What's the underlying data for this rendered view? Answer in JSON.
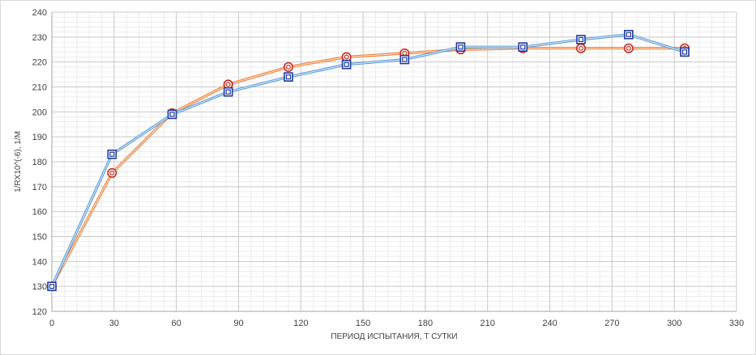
{
  "chart_data": {
    "type": "line",
    "title": "",
    "xlabel": "ПЕРИОД ИСПЫТАНИЯ, Т СУТКИ",
    "ylabel": "1/RX10^(-6), 1/M",
    "xlim": [
      0,
      330
    ],
    "ylim": [
      120,
      240
    ],
    "x_ticks": [
      0,
      30,
      60,
      90,
      120,
      150,
      180,
      210,
      240,
      270,
      300,
      330
    ],
    "y_ticks": [
      120,
      130,
      140,
      150,
      160,
      170,
      180,
      190,
      200,
      210,
      220,
      230,
      240
    ],
    "grid": "major and minor",
    "legend": "none",
    "series": [
      {
        "marker": "square",
        "color": "#5b9bd5",
        "marker_color": "#1f3b9c",
        "x": [
          0,
          29,
          58,
          85,
          114,
          142,
          170,
          197,
          227,
          255,
          278,
          305
        ],
        "y": [
          130,
          183,
          199,
          208,
          214,
          219,
          221,
          226,
          226,
          229,
          231,
          224
        ]
      },
      {
        "marker": "circle",
        "color": "#ed7d31",
        "marker_color": "#c0281c",
        "x": [
          0,
          29,
          58,
          85,
          114,
          142,
          170,
          197,
          227,
          255,
          278,
          305
        ],
        "y": [
          130,
          175.5,
          199.5,
          211,
          218,
          222,
          223.5,
          225,
          225.5,
          225.5,
          225.5,
          225.5
        ]
      }
    ]
  }
}
